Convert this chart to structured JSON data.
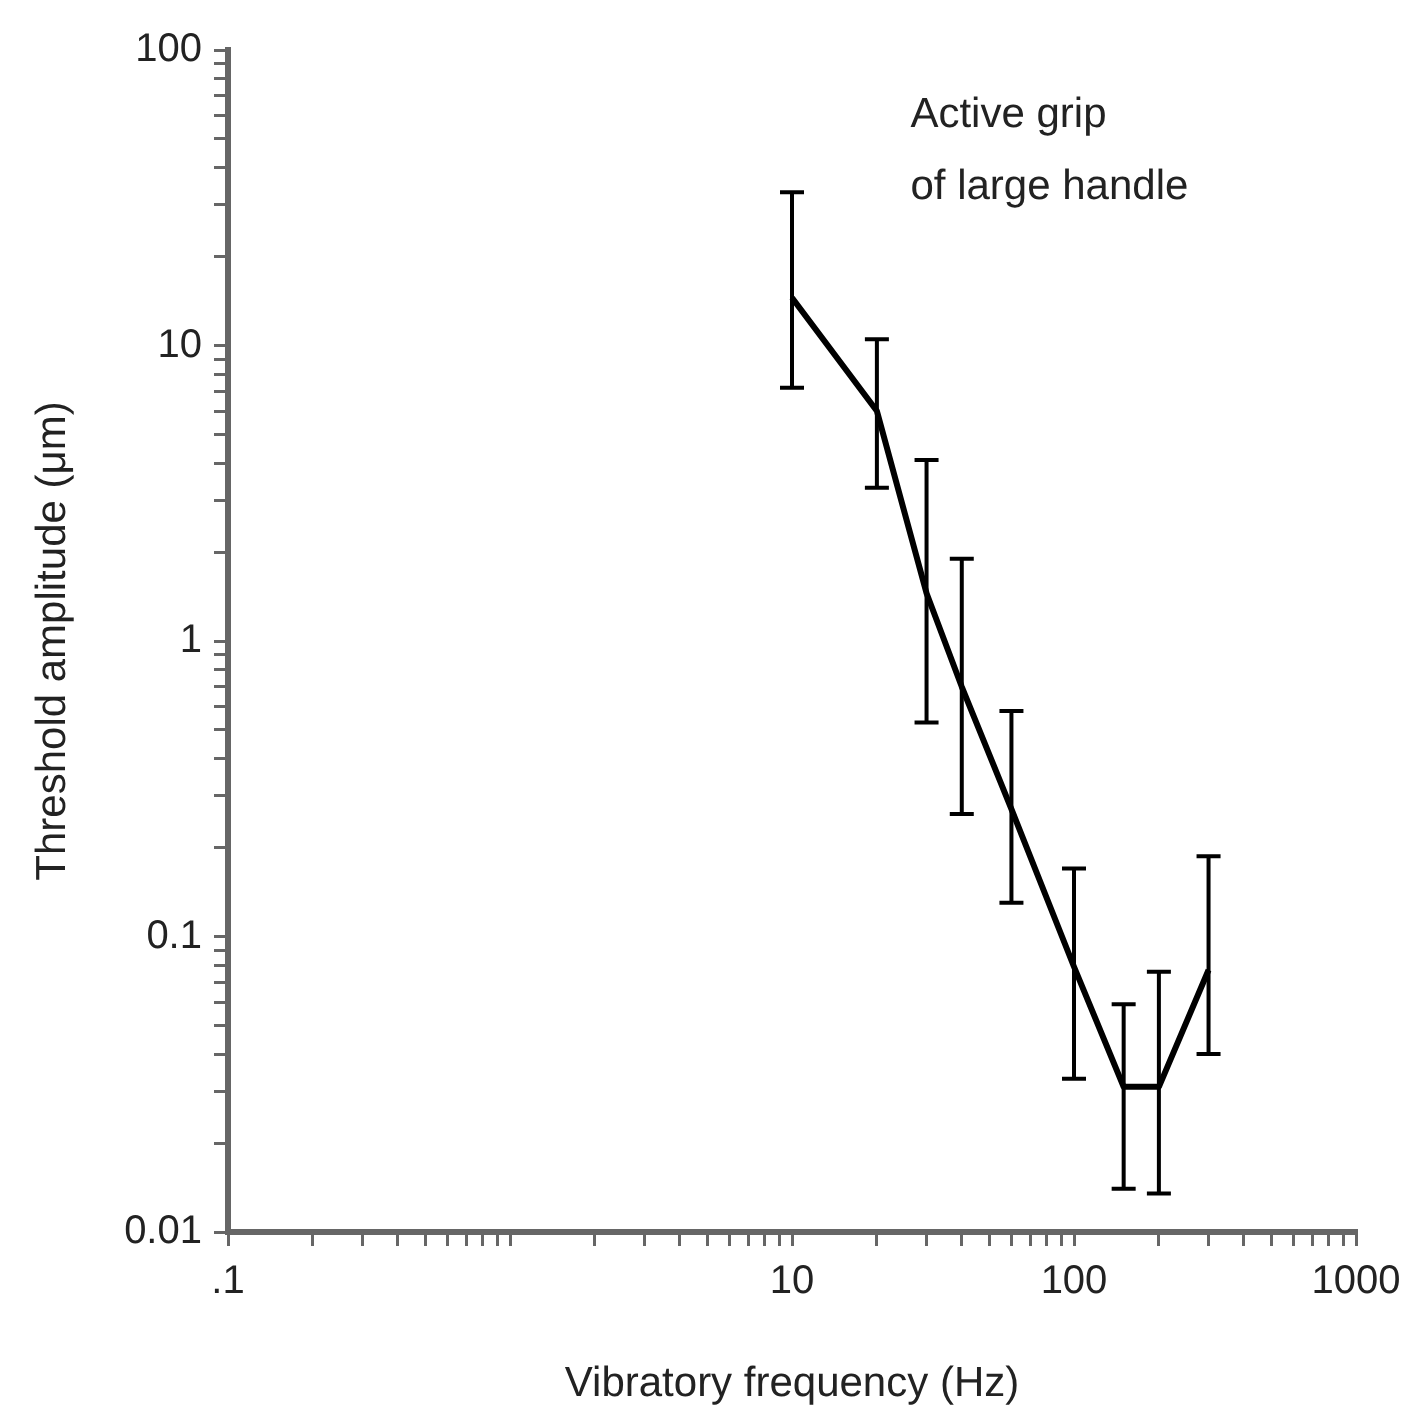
{
  "chart_data": {
    "type": "line",
    "xlabel": "Vibratory frequency (Hz)",
    "ylabel": "Threshold amplitude (μm)",
    "annotations": [
      "Active grip\nof large handle"
    ],
    "x": [
      10,
      20,
      30,
      40,
      60,
      100,
      150,
      200,
      300
    ],
    "series": [
      {
        "color": "#000000",
        "values": [
          14.5,
          6.0,
          1.45,
          0.7,
          0.27,
          0.079,
          0.031,
          0.031,
          0.077
        ],
        "errors": [
          [
            7.2,
            33
          ],
          [
            3.3,
            10.5
          ],
          [
            0.53,
            4.1
          ],
          [
            0.26,
            1.9
          ],
          [
            0.13,
            0.58
          ],
          [
            0.033,
            0.17
          ],
          [
            0.014,
            0.059
          ],
          [
            0.0135,
            0.076
          ],
          [
            0.04,
            0.187
          ]
        ]
      }
    ],
    "log": "xy",
    "xlim": [
      0.1,
      1000
    ],
    "ylim": [
      0.01,
      100
    ],
    "xticks": [
      {
        "value": 0.1,
        "label": ".1"
      },
      {
        "value": 0.2,
        "label": null
      },
      {
        "value": 0.3,
        "label": null
      },
      {
        "value": 0.4,
        "label": null
      },
      {
        "value": 0.5,
        "label": null
      },
      {
        "value": 0.6,
        "label": null
      },
      {
        "value": 0.7,
        "label": null
      },
      {
        "value": 0.8,
        "label": null
      },
      {
        "value": 0.9,
        "label": null
      },
      {
        "value": 1,
        "label": null
      },
      {
        "value": 2,
        "label": null
      },
      {
        "value": 3,
        "label": null
      },
      {
        "value": 4,
        "label": null
      },
      {
        "value": 5,
        "label": null
      },
      {
        "value": 6,
        "label": null
      },
      {
        "value": 7,
        "label": null
      },
      {
        "value": 8,
        "label": null
      },
      {
        "value": 9,
        "label": null
      },
      10,
      {
        "value": 20,
        "label": null
      },
      {
        "value": 30,
        "label": null
      },
      {
        "value": 40,
        "label": null
      },
      {
        "value": 50,
        "label": null
      },
      {
        "value": 60,
        "label": null
      },
      {
        "value": 70,
        "label": null
      },
      {
        "value": 80,
        "label": null
      },
      {
        "value": 90,
        "label": null
      },
      100,
      {
        "value": 200,
        "label": null
      },
      {
        "value": 300,
        "label": null
      },
      {
        "value": 400,
        "label": null
      },
      {
        "value": 500,
        "label": null
      },
      {
        "value": 600,
        "label": null
      },
      {
        "value": 700,
        "label": null
      },
      {
        "value": 800,
        "label": null
      },
      {
        "value": 900,
        "label": null
      },
      1000
    ],
    "yticks": [
      0.01,
      {
        "value": 0.02,
        "label": null
      },
      {
        "value": 0.03,
        "label": null
      },
      {
        "value": 0.04,
        "label": null
      },
      {
        "value": 0.05,
        "label": null
      },
      {
        "value": 0.06,
        "label": null
      },
      {
        "value": 0.07,
        "label": null
      },
      {
        "value": 0.08,
        "label": null
      },
      {
        "value": 0.09,
        "label": null
      },
      0.1,
      {
        "value": 0.2,
        "label": null
      },
      {
        "value": 0.3,
        "label": null
      },
      {
        "value": 0.4,
        "label": null
      },
      {
        "value": 0.5,
        "label": null
      },
      {
        "value": 0.6,
        "label": null
      },
      {
        "value": 0.7,
        "label": null
      },
      {
        "value": 0.8,
        "label": null
      },
      {
        "value": 0.9,
        "label": null
      },
      1,
      {
        "value": 2,
        "label": null
      },
      {
        "value": 3,
        "label": null
      },
      {
        "value": 4,
        "label": null
      },
      {
        "value": 5,
        "label": null
      },
      {
        "value": 6,
        "label": null
      },
      {
        "value": 7,
        "label": null
      },
      {
        "value": 8,
        "label": null
      },
      {
        "value": 9,
        "label": null
      },
      10,
      {
        "value": 20,
        "label": null
      },
      {
        "value": 30,
        "label": null
      },
      {
        "value": 40,
        "label": null
      },
      {
        "value": 50,
        "label": null
      },
      {
        "value": 60,
        "label": null
      },
      {
        "value": 70,
        "label": null
      },
      {
        "value": 80,
        "label": null
      },
      {
        "value": 90,
        "label": null
      },
      100
    ],
    "grid": false,
    "legend": false,
    "marker": "none",
    "line_style": "solid"
  }
}
